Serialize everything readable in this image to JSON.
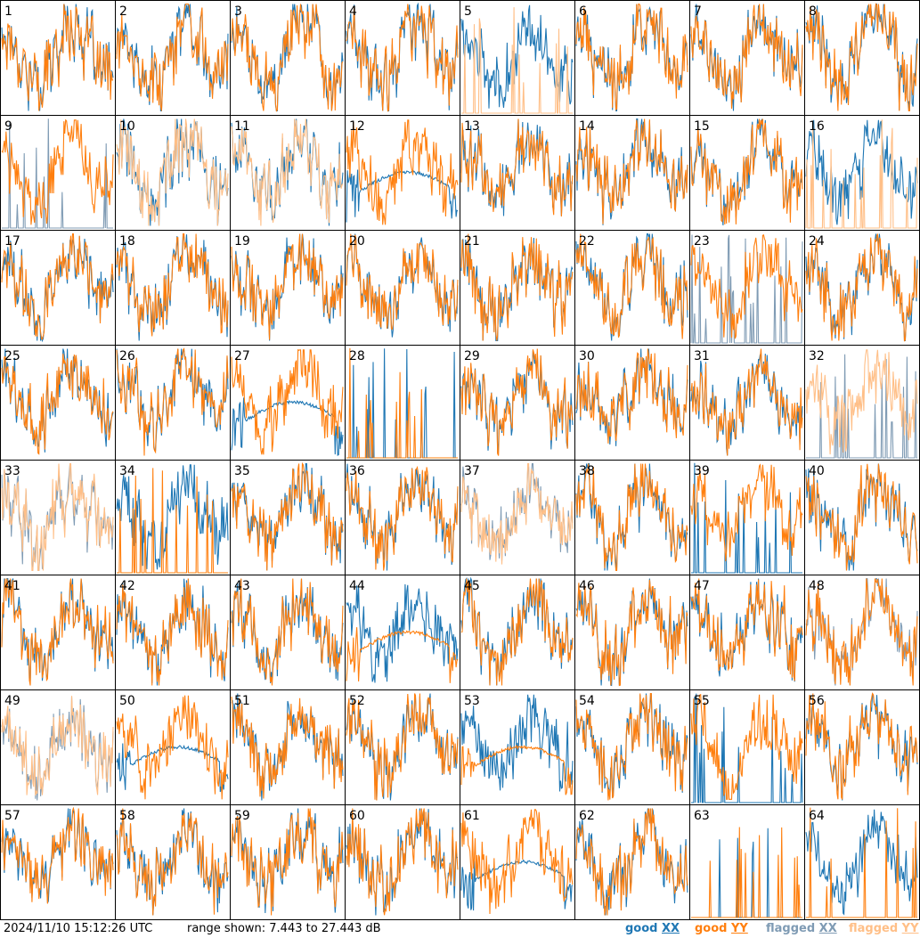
{
  "colors": {
    "good_xx": "#1f77b4",
    "good_yy": "#ff7f0e",
    "flagged_xx": "#7f9bb4",
    "flagged_yy": "#ffbf87"
  },
  "footer": {
    "timestamp": "2024/11/10 15:12:26 UTC",
    "range_text": "range shown: 7.443 to 27.443 dB"
  },
  "legend": {
    "good_xx": {
      "prefix": "good ",
      "pol": "XX"
    },
    "good_yy": {
      "prefix": "good ",
      "pol": "YY"
    },
    "flagged_xx": {
      "prefix": "flagged ",
      "pol": "XX"
    },
    "flagged_yy": {
      "prefix": "flagged ",
      "pol": "YY"
    }
  },
  "chart_data": {
    "type": "line",
    "grid": "8x8 small multiples",
    "y_range_db": [
      7.443,
      27.443
    ],
    "tiles": [
      {
        "label": "1",
        "xx": "good",
        "yy": "good",
        "profile": "normal"
      },
      {
        "label": "2",
        "xx": "good",
        "yy": "good",
        "profile": "normal"
      },
      {
        "label": "3",
        "xx": "good",
        "yy": "good",
        "profile": "normal"
      },
      {
        "label": "4",
        "xx": "good",
        "yy": "good",
        "profile": "normal"
      },
      {
        "label": "5",
        "xx": "good",
        "yy": "flagged",
        "profile": "yy_spikes"
      },
      {
        "label": "6",
        "xx": "good",
        "yy": "good",
        "profile": "normal"
      },
      {
        "label": "7",
        "xx": "good",
        "yy": "good",
        "profile": "normal"
      },
      {
        "label": "8",
        "xx": "good",
        "yy": "good",
        "profile": "normal"
      },
      {
        "label": "9",
        "xx": "flagged",
        "yy": "good",
        "profile": "xx_spikes"
      },
      {
        "label": "10",
        "xx": "good",
        "yy": "flagged",
        "profile": "normal"
      },
      {
        "label": "11",
        "xx": "good",
        "yy": "flagged",
        "profile": "normal"
      },
      {
        "label": "12",
        "xx": "good",
        "yy": "good",
        "profile": "xx_flat"
      },
      {
        "label": "13",
        "xx": "good",
        "yy": "good",
        "profile": "normal"
      },
      {
        "label": "14",
        "xx": "good",
        "yy": "good",
        "profile": "normal"
      },
      {
        "label": "15",
        "xx": "good",
        "yy": "good",
        "profile": "normal"
      },
      {
        "label": "16",
        "xx": "good",
        "yy": "flagged",
        "profile": "yy_spikes"
      },
      {
        "label": "17",
        "xx": "good",
        "yy": "good",
        "profile": "normal"
      },
      {
        "label": "18",
        "xx": "good",
        "yy": "good",
        "profile": "normal"
      },
      {
        "label": "19",
        "xx": "good",
        "yy": "good",
        "profile": "normal"
      },
      {
        "label": "20",
        "xx": "good",
        "yy": "good",
        "profile": "normal"
      },
      {
        "label": "21",
        "xx": "good",
        "yy": "good",
        "profile": "normal"
      },
      {
        "label": "22",
        "xx": "good",
        "yy": "good",
        "profile": "normal"
      },
      {
        "label": "23",
        "xx": "flagged",
        "yy": "good",
        "profile": "xx_spikes"
      },
      {
        "label": "24",
        "xx": "good",
        "yy": "good",
        "profile": "normal"
      },
      {
        "label": "25",
        "xx": "good",
        "yy": "good",
        "profile": "normal"
      },
      {
        "label": "26",
        "xx": "good",
        "yy": "good",
        "profile": "normal"
      },
      {
        "label": "27",
        "xx": "good",
        "yy": "good",
        "profile": "xx_flat"
      },
      {
        "label": "28",
        "xx": "good",
        "yy": "good",
        "profile": "dead"
      },
      {
        "label": "29",
        "xx": "good",
        "yy": "good",
        "profile": "normal"
      },
      {
        "label": "30",
        "xx": "good",
        "yy": "good",
        "profile": "normal"
      },
      {
        "label": "31",
        "xx": "good",
        "yy": "good",
        "profile": "normal"
      },
      {
        "label": "32",
        "xx": "flagged",
        "yy": "flagged",
        "profile": "xx_spikes"
      },
      {
        "label": "33",
        "xx": "flagged",
        "yy": "flagged",
        "profile": "normal"
      },
      {
        "label": "34",
        "xx": "good",
        "yy": "good",
        "profile": "yy_spikes"
      },
      {
        "label": "35",
        "xx": "good",
        "yy": "good",
        "profile": "normal"
      },
      {
        "label": "36",
        "xx": "good",
        "yy": "good",
        "profile": "normal"
      },
      {
        "label": "37",
        "xx": "flagged",
        "yy": "flagged",
        "profile": "normal"
      },
      {
        "label": "38",
        "xx": "good",
        "yy": "good",
        "profile": "normal"
      },
      {
        "label": "39",
        "xx": "good",
        "yy": "good",
        "profile": "xx_spikes"
      },
      {
        "label": "40",
        "xx": "good",
        "yy": "good",
        "profile": "normal"
      },
      {
        "label": "41",
        "xx": "good",
        "yy": "good",
        "profile": "normal"
      },
      {
        "label": "42",
        "xx": "good",
        "yy": "good",
        "profile": "normal"
      },
      {
        "label": "43",
        "xx": "good",
        "yy": "good",
        "profile": "normal"
      },
      {
        "label": "44",
        "xx": "good",
        "yy": "good",
        "profile": "yy_flat"
      },
      {
        "label": "45",
        "xx": "good",
        "yy": "good",
        "profile": "normal"
      },
      {
        "label": "46",
        "xx": "good",
        "yy": "good",
        "profile": "normal"
      },
      {
        "label": "47",
        "xx": "good",
        "yy": "good",
        "profile": "normal"
      },
      {
        "label": "48",
        "xx": "flagged",
        "yy": "good",
        "profile": "normal"
      },
      {
        "label": "49",
        "xx": "flagged",
        "yy": "flagged",
        "profile": "normal"
      },
      {
        "label": "50",
        "xx": "good",
        "yy": "good",
        "profile": "xx_flat"
      },
      {
        "label": "51",
        "xx": "good",
        "yy": "good",
        "profile": "normal"
      },
      {
        "label": "52",
        "xx": "good",
        "yy": "good",
        "profile": "normal"
      },
      {
        "label": "53",
        "xx": "good",
        "yy": "good",
        "profile": "yy_flat"
      },
      {
        "label": "54",
        "xx": "good",
        "yy": "good",
        "profile": "normal"
      },
      {
        "label": "55",
        "xx": "good",
        "yy": "good",
        "profile": "xx_spikes"
      },
      {
        "label": "56",
        "xx": "good",
        "yy": "good",
        "profile": "normal"
      },
      {
        "label": "57",
        "xx": "good",
        "yy": "good",
        "profile": "normal"
      },
      {
        "label": "58",
        "xx": "good",
        "yy": "good",
        "profile": "normal"
      },
      {
        "label": "59",
        "xx": "good",
        "yy": "good",
        "profile": "normal"
      },
      {
        "label": "60",
        "xx": "good",
        "yy": "good",
        "profile": "normal"
      },
      {
        "label": "61",
        "xx": "good",
        "yy": "good",
        "profile": "xx_flat"
      },
      {
        "label": "62",
        "xx": "good",
        "yy": "good",
        "profile": "normal"
      },
      {
        "label": "63",
        "xx": "good",
        "yy": "good",
        "profile": "dead"
      },
      {
        "label": "64",
        "xx": "good",
        "yy": "good",
        "profile": "yy_spikes"
      }
    ]
  }
}
